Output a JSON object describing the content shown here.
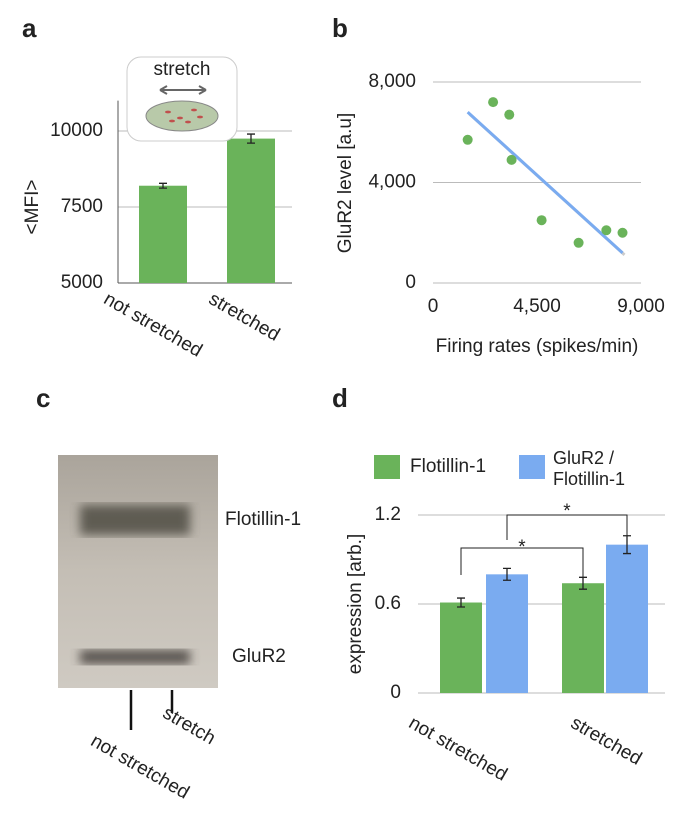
{
  "chart_data": [
    {
      "type": "bar",
      "label": "a",
      "ylabel": "<MFI>",
      "icon_text": "stretch",
      "categories": [
        "not stretched",
        "stretched"
      ],
      "values": [
        8200,
        9750
      ],
      "errors": [
        80,
        150
      ],
      "color": "#6ab35a",
      "ylim": [
        5000,
        11000
      ],
      "yticks": [
        5000,
        7500,
        10000
      ],
      "grid": true
    },
    {
      "type": "scatter",
      "label": "b",
      "xlabel": "Firing rates (spikes/min)",
      "ylabel": "GluR2 level [a.u]",
      "x": [
        1500,
        2600,
        3300,
        3400,
        4700,
        6300,
        7500,
        8200
      ],
      "values": [
        5700,
        7200,
        6700,
        4900,
        2500,
        1600,
        2100,
        2000
      ],
      "color": "#6ab35a",
      "trend": {
        "x": [
          1500,
          8200
        ],
        "values": [
          6800,
          1200
        ],
        "color": "#7aabf0"
      },
      "xlim": [
        0,
        9000
      ],
      "xticks": [
        0,
        {
          "value": 4500,
          "label": "4,500"
        },
        {
          "value": 9000,
          "label": "9,000"
        }
      ],
      "ylim": [
        0,
        8000
      ],
      "yticks": [
        0,
        {
          "value": 4000,
          "label": "4,000"
        },
        {
          "value": 8000,
          "label": "8,000"
        }
      ],
      "grid": true
    },
    {
      "type": "blot",
      "label": "c",
      "bands": [
        "Flotillin-1",
        "GluR2"
      ],
      "lanes": [
        "not stretched",
        "stretch"
      ]
    },
    {
      "type": "bar",
      "label": "d",
      "ylabel": "expression [arb.]",
      "categories": [
        "not stretched",
        "stretched"
      ],
      "series": [
        {
          "name": "Flotillin-1",
          "color": "#6ab35a",
          "values": [
            0.61,
            0.74
          ],
          "errors": [
            0.03,
            0.04
          ]
        },
        {
          "name": "GluR2 / Flotillin-1",
          "color": "#7aabf0",
          "values": [
            0.8,
            1.0
          ],
          "errors": [
            0.04,
            0.06
          ]
        }
      ],
      "annotations": [
        "*",
        "*"
      ],
      "ylim": [
        0,
        1.2
      ],
      "yticks": [
        0,
        0.6,
        1.2
      ],
      "grid": true
    }
  ]
}
